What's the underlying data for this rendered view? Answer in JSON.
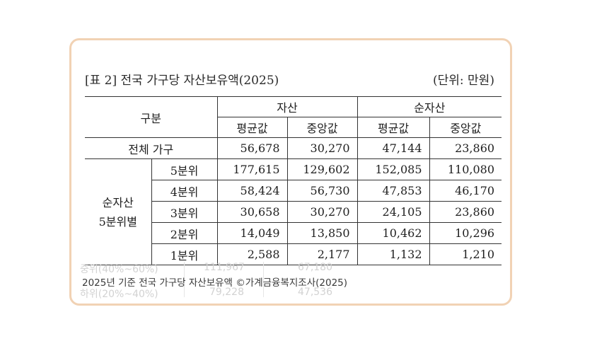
{
  "title": "[표 2] 전국 가구당 자산보유액(2025)",
  "unit": "(단위: 만원)",
  "header": {
    "category": "구분",
    "asset": "자산",
    "net_asset": "순자산",
    "mean": "평균값",
    "median": "중앙값"
  },
  "all_households": {
    "label": "전체 가구",
    "values": [
      "56,678",
      "30,270",
      "47,144",
      "23,860"
    ]
  },
  "quintile_group": {
    "label_line1": "순자산",
    "label_line2": "5분위별",
    "rows": [
      {
        "label": "5분위",
        "values": [
          "177,615",
          "129,602",
          "152,085",
          "110,080"
        ]
      },
      {
        "label": "4분위",
        "values": [
          "58,424",
          "56,730",
          "47,853",
          "46,170"
        ]
      },
      {
        "label": "3분위",
        "values": [
          "30,658",
          "30,270",
          "24,105",
          "23,860"
        ]
      },
      {
        "label": "2분위",
        "values": [
          "14,049",
          "13,850",
          "10,462",
          "10,296"
        ]
      },
      {
        "label": "1분위",
        "values": [
          "2,588",
          "2,177",
          "1,132",
          "1,210"
        ]
      }
    ]
  },
  "faded_rows": [
    {
      "label": "중위(40%~60%)",
      "v1": "111,967",
      "v2": "67,180"
    },
    {
      "label": "하위(20%~40%)",
      "v1": "79,228",
      "v2": "47,536"
    }
  ],
  "caption": "2025년 기준 전국 가구당 자산보유액 ©가계금융복지조사(2025)"
}
